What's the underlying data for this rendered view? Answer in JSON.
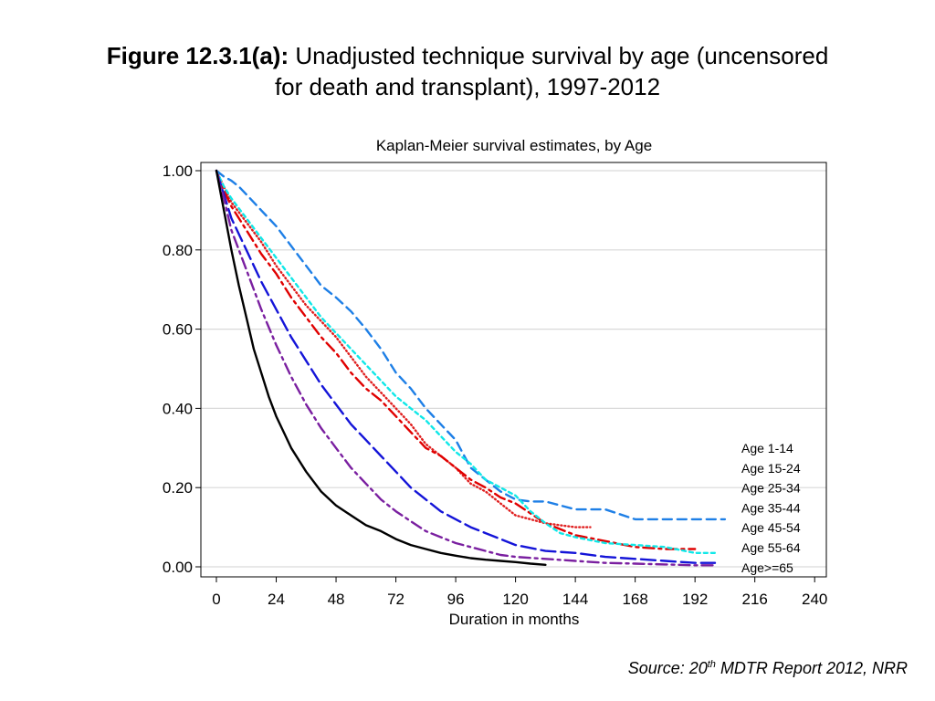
{
  "figure": {
    "title_bold": "Figure 12.3.1(a):",
    "title_rest_line1": "Unadjusted technique survival by age (uncensored",
    "title_line2": "for death and transplant), 1997-2012",
    "source_prefix": "Source: 20",
    "source_sup": "th",
    "source_suffix": " MDTR Report 2012, NRR"
  },
  "chart_data": {
    "type": "line",
    "title": "Kaplan-Meier survival estimates, by Age",
    "xlabel": "Duration in months",
    "ylabel": "",
    "xlim": [
      0,
      246
    ],
    "ylim": [
      0,
      1.0
    ],
    "xticks": [
      0,
      24,
      48,
      72,
      96,
      120,
      144,
      168,
      192,
      216,
      240
    ],
    "yticks": [
      0.0,
      0.2,
      0.4,
      0.6,
      0.8,
      1.0
    ],
    "ytick_labels": [
      "0.00",
      "0.20",
      "0.40",
      "0.60",
      "0.80",
      "1.00"
    ],
    "grid": true,
    "legend_position": "bottom-right",
    "series": [
      {
        "name": "Age 1-14",
        "color": "#1e7fe6",
        "dash": "10,6",
        "x": [
          0,
          3,
          6,
          9,
          12,
          18,
          24,
          30,
          36,
          42,
          48,
          54,
          60,
          66,
          72,
          78,
          84,
          90,
          96,
          102,
          108,
          114,
          120,
          126,
          132,
          144,
          156,
          168,
          180,
          192,
          204
        ],
        "y": [
          1.0,
          0.985,
          0.975,
          0.96,
          0.94,
          0.9,
          0.86,
          0.81,
          0.76,
          0.71,
          0.68,
          0.645,
          0.6,
          0.55,
          0.49,
          0.45,
          0.4,
          0.36,
          0.32,
          0.25,
          0.22,
          0.19,
          0.17,
          0.165,
          0.165,
          0.145,
          0.145,
          0.12,
          0.12,
          0.12,
          0.12
        ]
      },
      {
        "name": "Age 15-24",
        "color": "#e02020",
        "dash": "1,3",
        "x": [
          0,
          3,
          6,
          12,
          18,
          24,
          30,
          36,
          42,
          48,
          54,
          60,
          66,
          72,
          78,
          84,
          90,
          96,
          102,
          108,
          114,
          120,
          132,
          144,
          150
        ],
        "y": [
          1.0,
          0.96,
          0.92,
          0.87,
          0.82,
          0.76,
          0.71,
          0.66,
          0.62,
          0.58,
          0.53,
          0.48,
          0.44,
          0.4,
          0.36,
          0.31,
          0.28,
          0.25,
          0.21,
          0.19,
          0.16,
          0.13,
          0.11,
          0.1,
          0.1
        ]
      },
      {
        "name": "Age 25-34",
        "color": "#e00000",
        "dash": "12,5,3,5",
        "x": [
          0,
          3,
          6,
          12,
          18,
          24,
          30,
          36,
          42,
          48,
          54,
          60,
          66,
          72,
          78,
          84,
          90,
          96,
          102,
          108,
          114,
          120,
          132,
          144,
          156,
          168,
          180,
          192
        ],
        "y": [
          1.0,
          0.95,
          0.91,
          0.85,
          0.79,
          0.74,
          0.68,
          0.63,
          0.58,
          0.54,
          0.49,
          0.45,
          0.42,
          0.38,
          0.34,
          0.3,
          0.28,
          0.25,
          0.22,
          0.2,
          0.175,
          0.16,
          0.11,
          0.08,
          0.065,
          0.05,
          0.045,
          0.045
        ]
      },
      {
        "name": "Age 35-44",
        "color": "#10e8e8",
        "dash": "4,4",
        "x": [
          0,
          3,
          6,
          12,
          18,
          24,
          30,
          36,
          42,
          48,
          54,
          60,
          66,
          72,
          78,
          84,
          90,
          96,
          102,
          108,
          114,
          120,
          126,
          132,
          138,
          144,
          156,
          168,
          180,
          192,
          200
        ],
        "y": [
          1.0,
          0.96,
          0.93,
          0.88,
          0.83,
          0.78,
          0.73,
          0.68,
          0.63,
          0.59,
          0.55,
          0.51,
          0.47,
          0.43,
          0.4,
          0.37,
          0.33,
          0.29,
          0.26,
          0.22,
          0.2,
          0.18,
          0.14,
          0.11,
          0.085,
          0.075,
          0.06,
          0.055,
          0.05,
          0.035,
          0.035
        ]
      },
      {
        "name": "Age 45-54",
        "color": "#1414d8",
        "dash": "16,6",
        "x": [
          0,
          3,
          6,
          12,
          18,
          24,
          30,
          36,
          42,
          48,
          54,
          60,
          66,
          72,
          78,
          84,
          90,
          96,
          102,
          108,
          114,
          120,
          132,
          144,
          156,
          168,
          180,
          192,
          200
        ],
        "y": [
          1.0,
          0.94,
          0.88,
          0.8,
          0.72,
          0.65,
          0.58,
          0.52,
          0.46,
          0.41,
          0.36,
          0.32,
          0.28,
          0.24,
          0.2,
          0.17,
          0.14,
          0.12,
          0.1,
          0.085,
          0.07,
          0.055,
          0.04,
          0.035,
          0.025,
          0.02,
          0.015,
          0.01,
          0.01
        ]
      },
      {
        "name": "Age 55-64",
        "color": "#7a1fa0",
        "dash": "12,5,3,5",
        "x": [
          0,
          3,
          6,
          12,
          18,
          24,
          30,
          36,
          42,
          48,
          54,
          60,
          66,
          72,
          78,
          84,
          90,
          96,
          102,
          108,
          114,
          120,
          132,
          144,
          156,
          168,
          180,
          192,
          200
        ],
        "y": [
          1.0,
          0.93,
          0.85,
          0.75,
          0.65,
          0.56,
          0.48,
          0.41,
          0.35,
          0.3,
          0.25,
          0.21,
          0.17,
          0.14,
          0.115,
          0.09,
          0.075,
          0.06,
          0.05,
          0.04,
          0.03,
          0.025,
          0.02,
          0.015,
          0.01,
          0.008,
          0.006,
          0.004,
          0.004
        ]
      },
      {
        "name": "Age>=65",
        "color": "#000000",
        "dash": "",
        "x": [
          0,
          3,
          6,
          9,
          12,
          15,
          18,
          21,
          24,
          27,
          30,
          36,
          42,
          48,
          54,
          60,
          66,
          72,
          78,
          84,
          90,
          96,
          102,
          108,
          114,
          120,
          126,
          132
        ],
        "y": [
          1.0,
          0.9,
          0.8,
          0.71,
          0.63,
          0.55,
          0.49,
          0.43,
          0.38,
          0.34,
          0.3,
          0.24,
          0.19,
          0.155,
          0.13,
          0.105,
          0.09,
          0.07,
          0.055,
          0.045,
          0.035,
          0.028,
          0.022,
          0.018,
          0.015,
          0.012,
          0.008,
          0.005
        ]
      }
    ]
  }
}
